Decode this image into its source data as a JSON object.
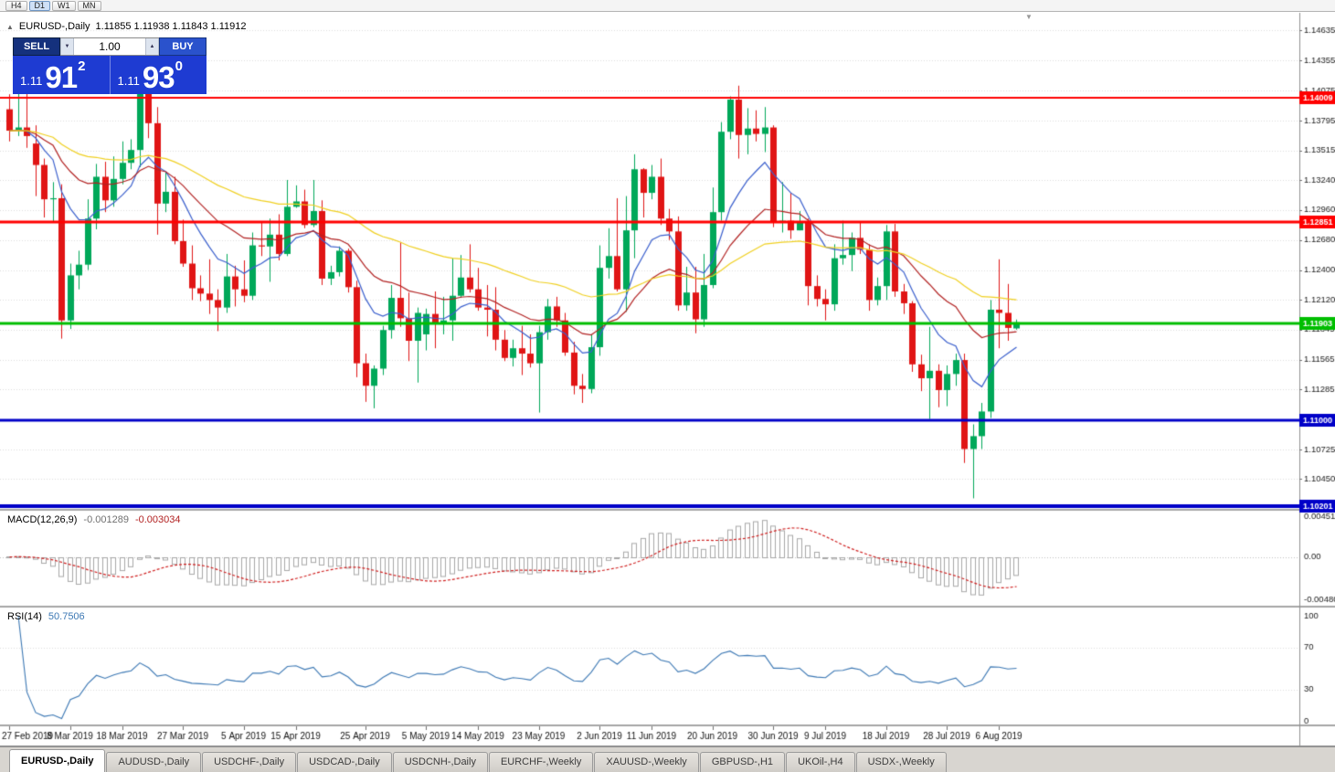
{
  "window": {
    "collapse_icon": "▲",
    "symbol_title": "EURUSD-,Daily",
    "ohlc_text": "1.11855 1.11938 1.11843 1.11912",
    "shift_marker_icon": "▼"
  },
  "toolbar": {
    "timeframes": [
      {
        "label": "H4",
        "active": false
      },
      {
        "label": "D1",
        "active": true
      },
      {
        "label": "W1",
        "active": false
      },
      {
        "label": "MN",
        "active": false
      }
    ]
  },
  "one_click": {
    "sell_label": "SELL",
    "buy_label": "BUY",
    "volume": "1.00",
    "volume_down_icon": "▼",
    "volume_up_icon": "▲",
    "bid_prefix": "1.11",
    "bid_big": "91",
    "bid_sup": "2",
    "ask_prefix": "1.11",
    "ask_big": "93",
    "ask_sup": "0"
  },
  "tabs": [
    {
      "label": "EURUSD-,Daily",
      "active": true
    },
    {
      "label": "AUDUSD-,Daily",
      "active": false
    },
    {
      "label": "USDCHF-,Daily",
      "active": false
    },
    {
      "label": "USDCAD-,Daily",
      "active": false
    },
    {
      "label": "USDCNH-,Daily",
      "active": false
    },
    {
      "label": "EURCHF-,Weekly",
      "active": false
    },
    {
      "label": "XAUUSD-,Weekly",
      "active": false
    },
    {
      "label": "GBPUSD-,H1",
      "active": false
    },
    {
      "label": "UKOil-,H4",
      "active": false
    },
    {
      "label": "USDX-,Weekly",
      "active": false
    }
  ],
  "chart_data": {
    "type": "candlestick",
    "symbol": "EURUSD-,Daily",
    "y_range": {
      "top": 1.148,
      "bottom": 1.1018
    },
    "y_axis_labels": [
      "1.14635",
      "1.14355",
      "1.14075",
      "1.13795",
      "1.13515",
      "1.13240",
      "1.12960",
      "1.12680",
      "1.12400",
      "1.12120",
      "1.11845",
      "1.11565",
      "1.11285",
      "1.10725",
      "1.10450"
    ],
    "hlines": [
      {
        "price": 1.14009,
        "label": "1.14009",
        "color": "#FF0000",
        "width": 2
      },
      {
        "price": 1.12851,
        "label": "1.12851",
        "color": "#FF0000",
        "width": 3
      },
      {
        "price": 1.11903,
        "label": "1.11903",
        "color": "#00BE00",
        "width": 3
      },
      {
        "price": 1.11,
        "label": "1.11000",
        "color": "#0000C8",
        "width": 3
      },
      {
        "price": 1.10201,
        "label": "1.10201",
        "color": "#0000C8",
        "width": 4
      }
    ],
    "moving_averages": [
      {
        "period": 9,
        "method": "ema",
        "color": "#3A5FCD"
      },
      {
        "period": 21,
        "method": "ema",
        "color": "#B22222"
      },
      {
        "period": 50,
        "method": "ema",
        "color": "#F0D020"
      }
    ],
    "macd": {
      "label": "MACD(12,26,9)",
      "value_main": "-0.001289",
      "value_signal": "-0.003034",
      "fast": 12,
      "slow": 26,
      "signal": 9,
      "axis_labels": [
        "0.004517",
        "0.00",
        "-0.004806"
      ],
      "range_top": 0.0052,
      "range_bottom": -0.0054
    },
    "rsi": {
      "label": "RSI(14)",
      "value": "50.7506",
      "period": 14,
      "levels": [
        70,
        30
      ],
      "axis_labels": [
        "100",
        "70",
        "30",
        "0"
      ]
    },
    "x_ticks": [
      [
        0,
        "27 Feb 2019"
      ],
      [
        7,
        "8 Mar 2019"
      ],
      [
        13,
        "18 Mar 2019"
      ],
      [
        20,
        "27 Mar 2019"
      ],
      [
        27,
        "5 Apr 2019"
      ],
      [
        33,
        "15 Apr 2019"
      ],
      [
        41,
        "25 Apr 2019"
      ],
      [
        48,
        "5 May 2019"
      ],
      [
        54,
        "14 May 2019"
      ],
      [
        61,
        "23 May 2019"
      ],
      [
        68,
        "2 Jun 2019"
      ],
      [
        74,
        "11 Jun 2019"
      ],
      [
        81,
        "20 Jun 2019"
      ],
      [
        88,
        "30 Jun 2019"
      ],
      [
        94,
        "9 Jul 2019"
      ],
      [
        101,
        "18 Jul 2019"
      ],
      [
        108,
        "28 Jul 2019"
      ],
      [
        114,
        "6 Aug 2019"
      ]
    ],
    "candles": [
      [
        1.139,
        1.1404,
        1.136,
        1.137
      ],
      [
        1.137,
        1.1421,
        1.1365,
        1.1373
      ],
      [
        1.1373,
        1.1408,
        1.1354,
        1.1365
      ],
      [
        1.1358,
        1.1375,
        1.1309,
        1.1338
      ],
      [
        1.1338,
        1.1344,
        1.1289,
        1.1306
      ],
      [
        1.1306,
        1.1322,
        1.1285,
        1.1307
      ],
      [
        1.1307,
        1.132,
        1.1176,
        1.1193
      ],
      [
        1.1193,
        1.1246,
        1.1185,
        1.1235
      ],
      [
        1.1235,
        1.1258,
        1.1222,
        1.1245
      ],
      [
        1.1245,
        1.1306,
        1.124,
        1.1288
      ],
      [
        1.1288,
        1.1339,
        1.1278,
        1.1327
      ],
      [
        1.1327,
        1.1341,
        1.1294,
        1.1305
      ],
      [
        1.1305,
        1.1346,
        1.1299,
        1.1325
      ],
      [
        1.1325,
        1.136,
        1.132,
        1.134
      ],
      [
        1.134,
        1.1362,
        1.1334,
        1.1352
      ],
      [
        1.1352,
        1.1437,
        1.1336,
        1.1412
      ],
      [
        1.1412,
        1.1448,
        1.1363,
        1.1377
      ],
      [
        1.1377,
        1.1392,
        1.1273,
        1.1302
      ],
      [
        1.1302,
        1.1331,
        1.1294,
        1.1313
      ],
      [
        1.1313,
        1.1327,
        1.1264,
        1.1267
      ],
      [
        1.1267,
        1.1287,
        1.1243,
        1.1246
      ],
      [
        1.1246,
        1.1263,
        1.1212,
        1.1223
      ],
      [
        1.1223,
        1.1235,
        1.1211,
        1.1218
      ],
      [
        1.1218,
        1.125,
        1.1199,
        1.1212
      ],
      [
        1.1212,
        1.1222,
        1.1183,
        1.1205
      ],
      [
        1.1205,
        1.1255,
        1.12,
        1.1234
      ],
      [
        1.1234,
        1.1244,
        1.1206,
        1.1222
      ],
      [
        1.1222,
        1.1249,
        1.121,
        1.1216
      ],
      [
        1.1216,
        1.1275,
        1.1212,
        1.1263
      ],
      [
        1.1263,
        1.1285,
        1.1253,
        1.1262
      ],
      [
        1.1262,
        1.1288,
        1.1229,
        1.1273
      ],
      [
        1.1273,
        1.1292,
        1.1249,
        1.1255
      ],
      [
        1.1255,
        1.1324,
        1.1253,
        1.1299
      ],
      [
        1.1299,
        1.1319,
        1.1298,
        1.1304
      ],
      [
        1.1304,
        1.1315,
        1.1279,
        1.1282
      ],
      [
        1.1282,
        1.1324,
        1.128,
        1.1295
      ],
      [
        1.1295,
        1.1305,
        1.1226,
        1.1232
      ],
      [
        1.1232,
        1.1244,
        1.1226,
        1.1238
      ],
      [
        1.1238,
        1.1262,
        1.1234,
        1.1258
      ],
      [
        1.1258,
        1.126,
        1.1219,
        1.1224
      ],
      [
        1.1224,
        1.123,
        1.114,
        1.1153
      ],
      [
        1.1153,
        1.1162,
        1.1117,
        1.1132
      ],
      [
        1.1132,
        1.1151,
        1.1111,
        1.1148
      ],
      [
        1.1148,
        1.1188,
        1.1142,
        1.1184
      ],
      [
        1.1184,
        1.1226,
        1.1176,
        1.1214
      ],
      [
        1.1214,
        1.1266,
        1.1187,
        1.1195
      ],
      [
        1.1195,
        1.1219,
        1.1155,
        1.1174
      ],
      [
        1.1174,
        1.1205,
        1.1135,
        1.12
      ],
      [
        1.118,
        1.1204,
        1.1165,
        1.1199
      ],
      [
        1.1199,
        1.122,
        1.1167,
        1.119
      ],
      [
        1.119,
        1.1215,
        1.118,
        1.1193
      ],
      [
        1.1193,
        1.1251,
        1.1174,
        1.1216
      ],
      [
        1.1216,
        1.1254,
        1.1214,
        1.1233
      ],
      [
        1.1233,
        1.1264,
        1.1219,
        1.1222
      ],
      [
        1.1222,
        1.1242,
        1.1202,
        1.1205
      ],
      [
        1.1205,
        1.1226,
        1.1178,
        1.1203
      ],
      [
        1.1203,
        1.1224,
        1.1165,
        1.1175
      ],
      [
        1.1175,
        1.1184,
        1.1155,
        1.1158
      ],
      [
        1.1158,
        1.1175,
        1.115,
        1.1167
      ],
      [
        1.1167,
        1.1188,
        1.1142,
        1.1162
      ],
      [
        1.1162,
        1.118,
        1.1149,
        1.1153
      ],
      [
        1.1153,
        1.1188,
        1.1107,
        1.1182
      ],
      [
        1.1182,
        1.1213,
        1.1175,
        1.1206
      ],
      [
        1.1206,
        1.1215,
        1.1187,
        1.1193
      ],
      [
        1.1193,
        1.12,
        1.116,
        1.1163
      ],
      [
        1.1163,
        1.1173,
        1.1124,
        1.1132
      ],
      [
        1.1132,
        1.1143,
        1.1116,
        1.1129
      ],
      [
        1.1129,
        1.118,
        1.1125,
        1.1168
      ],
      [
        1.1168,
        1.1263,
        1.116,
        1.1242
      ],
      [
        1.1242,
        1.1279,
        1.1232,
        1.1253
      ],
      [
        1.1253,
        1.1307,
        1.122,
        1.1222
      ],
      [
        1.1222,
        1.1309,
        1.1201,
        1.1277
      ],
      [
        1.1277,
        1.1348,
        1.1251,
        1.1334
      ],
      [
        1.1334,
        1.1335,
        1.1289,
        1.1312
      ],
      [
        1.1312,
        1.1338,
        1.1306,
        1.1327
      ],
      [
        1.1327,
        1.1344,
        1.1282,
        1.1288
      ],
      [
        1.1288,
        1.1297,
        1.1268,
        1.1276
      ],
      [
        1.1276,
        1.129,
        1.1202,
        1.1207
      ],
      [
        1.1207,
        1.1243,
        1.1202,
        1.1219
      ],
      [
        1.1219,
        1.1243,
        1.1181,
        1.1194
      ],
      [
        1.1194,
        1.1255,
        1.1187,
        1.1226
      ],
      [
        1.1226,
        1.1317,
        1.1223,
        1.1294
      ],
      [
        1.1294,
        1.1378,
        1.1286,
        1.1369
      ],
      [
        1.1369,
        1.1402,
        1.1362,
        1.1399
      ],
      [
        1.1399,
        1.1412,
        1.1344,
        1.1366
      ],
      [
        1.1366,
        1.1391,
        1.1348,
        1.1372
      ],
      [
        1.1372,
        1.1389,
        1.136,
        1.1367
      ],
      [
        1.1367,
        1.1392,
        1.135,
        1.1373
      ],
      [
        1.1373,
        1.1375,
        1.128,
        1.1285
      ],
      [
        1.1285,
        1.1322,
        1.1275,
        1.1286
      ],
      [
        1.1286,
        1.1312,
        1.1269,
        1.1277
      ],
      [
        1.1277,
        1.1295,
        1.1277,
        1.1285
      ],
      [
        1.1285,
        1.1288,
        1.1207,
        1.1225
      ],
      [
        1.1225,
        1.1235,
        1.1206,
        1.1213
      ],
      [
        1.1213,
        1.1222,
        1.1193,
        1.1208
      ],
      [
        1.1208,
        1.1264,
        1.1202,
        1.1251
      ],
      [
        1.1251,
        1.1286,
        1.1245,
        1.1254
      ],
      [
        1.1254,
        1.1275,
        1.1239,
        1.127
      ],
      [
        1.127,
        1.1285,
        1.1255,
        1.1259
      ],
      [
        1.1259,
        1.1264,
        1.1202,
        1.1212
      ],
      [
        1.1212,
        1.1233,
        1.1207,
        1.1225
      ],
      [
        1.1225,
        1.1282,
        1.1212,
        1.1276
      ],
      [
        1.1276,
        1.1283,
        1.1215,
        1.122
      ],
      [
        1.122,
        1.1227,
        1.1199,
        1.1209
      ],
      [
        1.1209,
        1.1211,
        1.1145,
        1.1152
      ],
      [
        1.1152,
        1.1161,
        1.1127,
        1.1139
      ],
      [
        1.1139,
        1.1187,
        1.1101,
        1.1146
      ],
      [
        1.1146,
        1.1152,
        1.1112,
        1.1128
      ],
      [
        1.1128,
        1.1151,
        1.1113,
        1.1143
      ],
      [
        1.1143,
        1.1162,
        1.1132,
        1.1156
      ],
      [
        1.1156,
        1.1162,
        1.106,
        1.1073
      ],
      [
        1.1073,
        1.1096,
        1.1027,
        1.1085
      ],
      [
        1.1085,
        1.1116,
        1.1073,
        1.1108
      ],
      [
        1.1108,
        1.1212,
        1.1102,
        1.1203
      ],
      [
        1.1203,
        1.125,
        1.1167,
        1.12
      ],
      [
        1.12,
        1.1227,
        1.1174,
        1.1186
      ],
      [
        1.11855,
        1.11938,
        1.11843,
        1.11912
      ]
    ],
    "colors": {
      "candle_up": "#00A859",
      "candle_down": "#E01515",
      "macd_histogram": "#A8A8A8",
      "macd_signal": "#D02020",
      "rsi_line": "#3C78B4",
      "grid": "#DCDCDC",
      "panel_blue": "#1E3BD2",
      "sell_navy": "#15317D",
      "buy_blue": "#2A52CC"
    }
  }
}
